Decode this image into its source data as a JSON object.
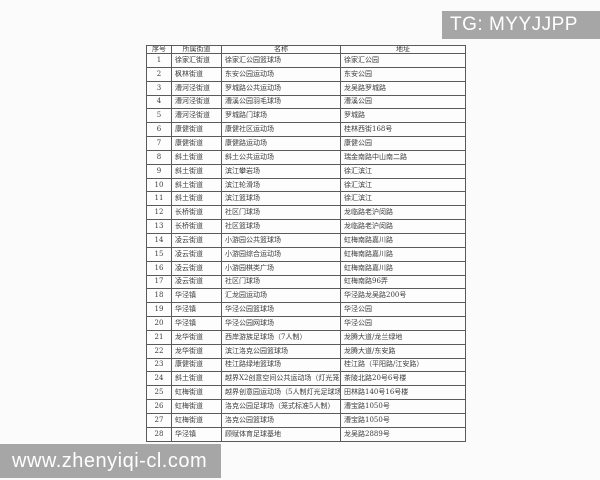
{
  "watermarks": {
    "top_right": "TG: MYYJJPP",
    "bottom_left": "www.zhenyiqi-cl.com"
  },
  "table": {
    "headers": [
      "序号",
      "所属街道",
      "名称",
      "地址"
    ],
    "rows": [
      [
        "1",
        "徐家汇街道",
        "徐家汇公园篮球场",
        "徐家汇公园"
      ],
      [
        "2",
        "枫林街道",
        "东安公园运动场",
        "东安公园"
      ],
      [
        "3",
        "漕河泾街道",
        "罗城路公共运动场",
        "龙吴路罗城路"
      ],
      [
        "4",
        "漕河泾街道",
        "漕溪公园羽毛球场",
        "漕溪公园"
      ],
      [
        "5",
        "漕河泾街道",
        "罗城路门球场",
        "罗城路"
      ],
      [
        "6",
        "康健街道",
        "康健社区运动场",
        "桂林西街168号"
      ],
      [
        "7",
        "康健街道",
        "康健路运动场",
        "康健公园"
      ],
      [
        "8",
        "斜土街道",
        "斜土公共运动场",
        "瑞金南路中山南二路"
      ],
      [
        "9",
        "斜土街道",
        "滨江攀岩场",
        "徐汇滨江"
      ],
      [
        "10",
        "斜土街道",
        "滨江轮滑场",
        "徐汇滨江"
      ],
      [
        "11",
        "斜土街道",
        "滨江篮球场",
        "徐汇滨江"
      ],
      [
        "12",
        "长桥街道",
        "社区门球场",
        "龙临路老沪闵路"
      ],
      [
        "13",
        "长桥街道",
        "社区篮球场",
        "龙临路老沪闵路"
      ],
      [
        "14",
        "凌云街道",
        "小游园公共篮球场",
        "虹梅南路嘉川路"
      ],
      [
        "15",
        "凌云街道",
        "小游园综合运动场",
        "虹梅南路嘉川路"
      ],
      [
        "16",
        "凌云街道",
        "小游园棋类广场",
        "虹梅南路嘉川路"
      ],
      [
        "17",
        "凌云街道",
        "社区门球场",
        "虹梅南路96弄"
      ],
      [
        "18",
        "华泾镇",
        "汇龙园运动场",
        "华泾路龙吴路200号"
      ],
      [
        "19",
        "华泾镇",
        "华泾公园篮球场",
        "华泾公园"
      ],
      [
        "20",
        "华泾镇",
        "华泾公园网球场",
        "华泾公园"
      ],
      [
        "21",
        "龙华街道",
        "西岸游族足球场（7人制）",
        "龙腾大道/龙兰绿地"
      ],
      [
        "22",
        "龙华街道",
        "滨江洛克公园篮球场",
        "龙腾大道/东安路"
      ],
      [
        "23",
        "康健街道",
        "桂江路绿地篮球场",
        "桂江路（平阳路/江安路）"
      ],
      [
        "24",
        "斜土街道",
        "越界X2创意空间公共运动场（灯光笼式足球）",
        "茶陵北路20号6号楼"
      ],
      [
        "25",
        "虹梅街道",
        "越界创意园运动场（5人制灯光足球场）",
        "田林路140号16号楼"
      ],
      [
        "26",
        "虹梅街道",
        "洛克公园足球场（笼式标准5人制）",
        "漕宝路1050号"
      ],
      [
        "27",
        "虹梅街道",
        "洛克公园篮球场",
        "漕宝路1050号"
      ],
      [
        "28",
        "华泾镇",
        "顾赋体育足球基地",
        "龙吴路2889号"
      ]
    ]
  },
  "colors": {
    "watermark_bg": "#a6a6a6",
    "watermark_text": "#ffffff",
    "table_border": "#5a5a5a",
    "table_text": "#3c3c3c",
    "page_bg": "#fbfbfb"
  }
}
